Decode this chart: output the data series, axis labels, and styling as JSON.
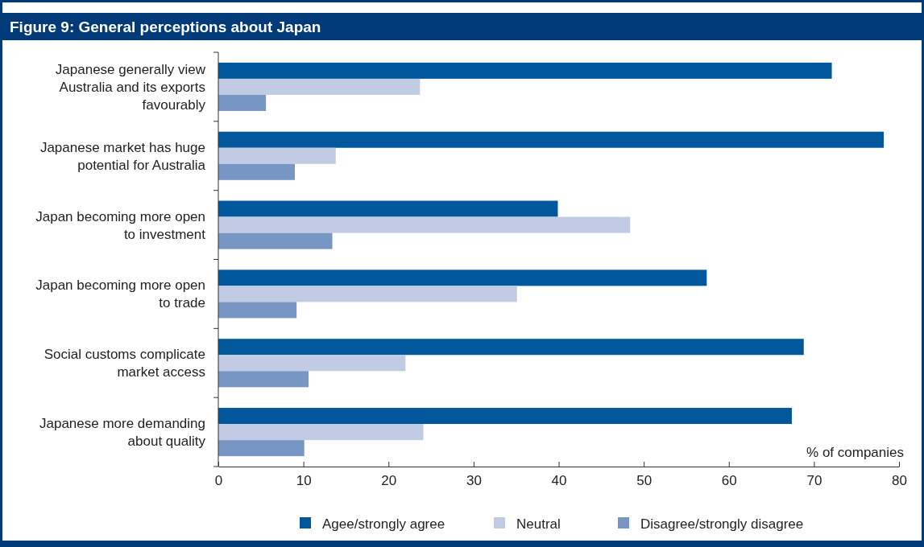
{
  "chart_data": {
    "type": "bar",
    "orientation": "horizontal",
    "title": "Figure 9: General perceptions about Japan",
    "xlabel": "% of companies",
    "categories": [
      "Japanese generally view Australia and its exports favourably",
      "Japanese market has huge potential for Australia",
      "Japan becoming more open to investment",
      "Japan becoming more open to trade",
      "Social customs complicate market access",
      "Japanese more demanding about quality"
    ],
    "series": [
      {
        "name": "Agee/strongly agree",
        "color": "#00579b",
        "values": [
          72.1,
          78.2,
          39.9,
          57.4,
          68.8,
          67.4
        ]
      },
      {
        "name": "Neutral",
        "color": "#c1cbe4",
        "values": [
          23.7,
          13.8,
          48.4,
          35.1,
          22.0,
          24.1
        ]
      },
      {
        "name": "Disagree/strongly disagree",
        "color": "#7896c4",
        "values": [
          5.6,
          9.0,
          13.4,
          9.2,
          10.6,
          10.1
        ]
      }
    ],
    "xlim": [
      0,
      80
    ],
    "xticks": [
      0,
      10,
      20,
      30,
      40,
      50,
      60,
      70,
      80
    ],
    "legend": "bottom",
    "grid": false
  }
}
